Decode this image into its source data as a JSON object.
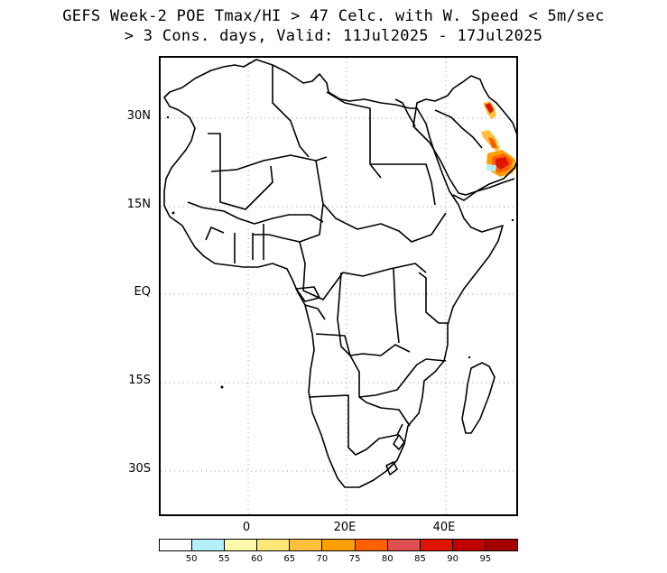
{
  "title": {
    "line1": "GEFS Week-2 POE Tmax/HI > 47 Celc. with W. Speed < 5m/sec",
    "line2": "> 3 Cons. days, Valid: 11Jul2025 - 17Jul2025"
  },
  "map": {
    "region": "Africa",
    "lat_labels": [
      "30N",
      "15N",
      "EQ",
      "15S",
      "30S"
    ],
    "lon_labels": [
      "0",
      "20E",
      "40E"
    ],
    "grid": true
  },
  "colorbar": {
    "labels": [
      "50",
      "55",
      "60",
      "65",
      "70",
      "75",
      "80",
      "85",
      "90",
      "95"
    ],
    "colors": [
      "#ffffff",
      "#b4f0fa",
      "#fffaaa",
      "#ffe878",
      "#ffc03c",
      "#ffa000",
      "#ff6000",
      "#e15050",
      "#e11400",
      "#c00000",
      "#a50000"
    ]
  },
  "highlight": {
    "area": "Red Sea coast / Arabian Peninsula",
    "color_high": "#e11400",
    "color_mid": "#ff6000",
    "color_low": "#ffc03c",
    "color_edge": "#b4f0fa"
  }
}
